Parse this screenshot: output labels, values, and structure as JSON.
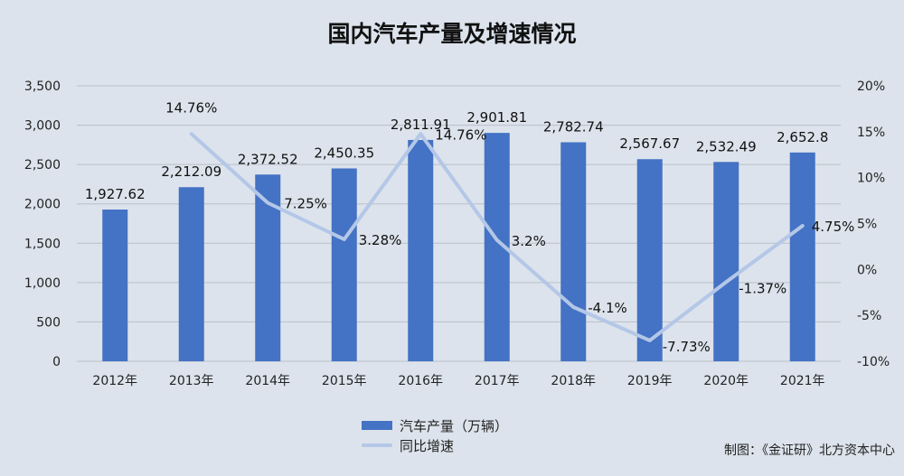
{
  "title": "国内汽车产量及增速情况",
  "source": "制图：《金证研》北方资本中心",
  "colors": {
    "bar": "#4472c4",
    "line": "#b4c7e7",
    "background": "#dce3ec",
    "grid": "#b9c0c8"
  },
  "chart_data": {
    "type": "bar",
    "title": "国内汽车产量及增速情况",
    "categories": [
      "2012年",
      "2013年",
      "2014年",
      "2015年",
      "2016年",
      "2017年",
      "2018年",
      "2019年",
      "2020年",
      "2021年"
    ],
    "series": [
      {
        "name": "汽车产量（万辆）",
        "type": "bar",
        "axis": "left",
        "values": [
          1927.62,
          2212.09,
          2372.52,
          2450.35,
          2811.91,
          2901.81,
          2782.74,
          2567.67,
          2532.49,
          2652.8
        ],
        "labels": [
          "1,927.62",
          "2,212.09",
          "2,372.52",
          "2,450.35",
          "2,811.91",
          "2,901.81",
          "2,782.74",
          "2,567.67",
          "2,532.49",
          "2,652.8"
        ]
      },
      {
        "name": "同比增速",
        "type": "line",
        "axis": "right",
        "values": [
          null,
          14.76,
          7.25,
          3.28,
          14.76,
          3.2,
          -4.1,
          -7.73,
          -1.37,
          4.75
        ],
        "labels": [
          "",
          "14.76%",
          "7.25%",
          "3.28%",
          "14.76%",
          "3.2%",
          "-4.1%",
          "-7.73%",
          "-1.37%",
          "4.75%"
        ]
      }
    ],
    "y_left": {
      "min": 0,
      "max": 3500,
      "ticks": [
        0,
        500,
        1000,
        1500,
        2000,
        2500,
        3000,
        3500
      ],
      "tick_labels": [
        "0",
        "500",
        "1,000",
        "1,500",
        "2,000",
        "2,500",
        "3,000",
        "3,500"
      ]
    },
    "y_right": {
      "min": -10,
      "max": 20,
      "ticks": [
        -10,
        -5,
        0,
        5,
        10,
        15,
        20
      ],
      "tick_labels": [
        "-10%",
        "-5%",
        "0%",
        "5%",
        "10%",
        "15%",
        "20%"
      ]
    },
    "grid": true,
    "legend_position": "bottom"
  }
}
